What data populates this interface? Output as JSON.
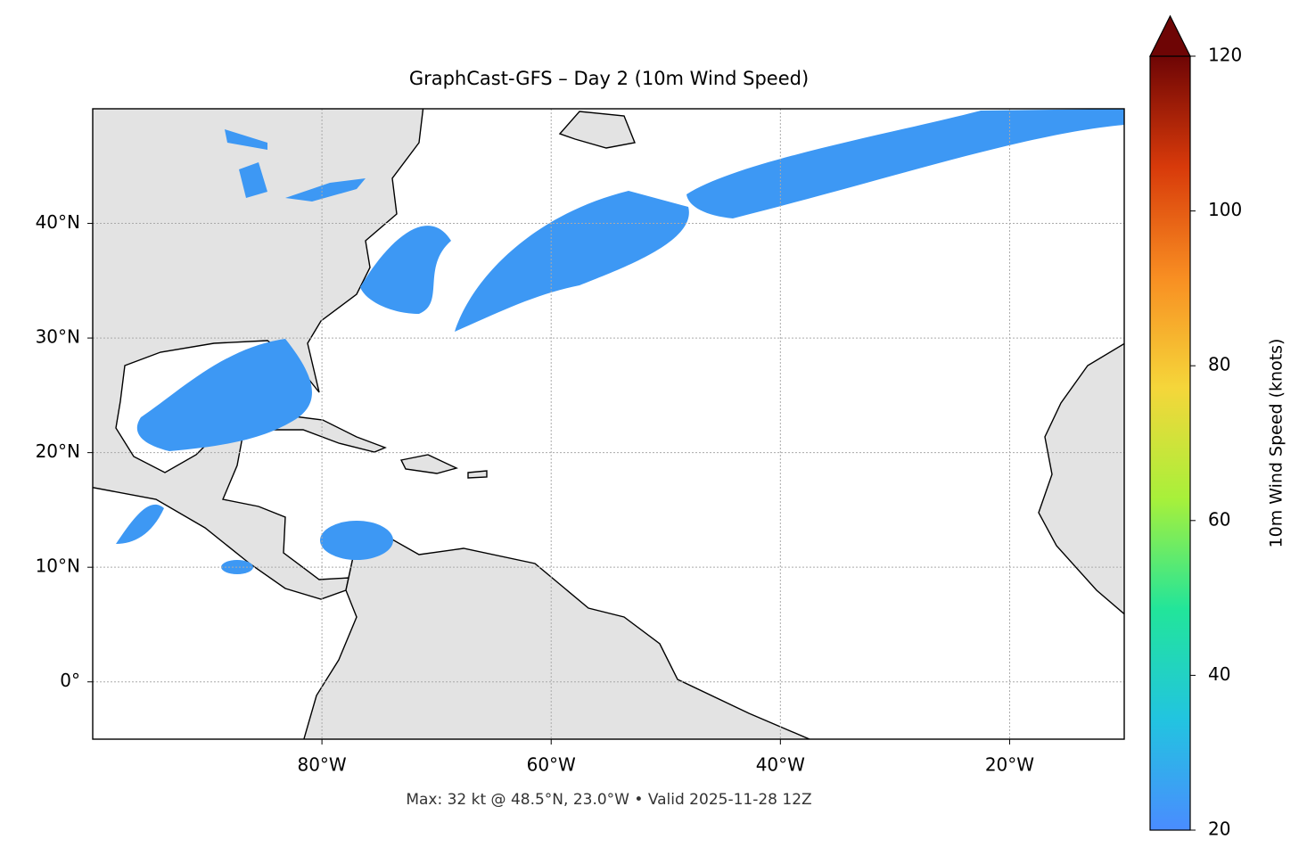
{
  "chart_data": {
    "type": "map",
    "title": "GraphCast-GFS – Day 2 (10m Wind Speed)",
    "annotation": "Max: 32 kt @ 48.5°N, 23.0°W • Valid 2025-11-28 12Z",
    "xlim": [
      -100,
      -10
    ],
    "ylim": [
      -5,
      50
    ],
    "xticks": [
      {
        "value": -80,
        "label": "80°W"
      },
      {
        "value": -60,
        "label": "60°W"
      },
      {
        "value": -40,
        "label": "40°W"
      },
      {
        "value": -20,
        "label": "20°W"
      }
    ],
    "yticks": [
      {
        "value": 0,
        "label": "0°"
      },
      {
        "value": 10,
        "label": "10°N"
      },
      {
        "value": 20,
        "label": "20°N"
      },
      {
        "value": 30,
        "label": "30°N"
      },
      {
        "value": 40,
        "label": "40°N"
      }
    ],
    "grid": true,
    "colorbar": {
      "label": "10m Wind Speed (knots)",
      "lim": [
        20,
        120
      ],
      "ticks": [
        20,
        40,
        60,
        80,
        100,
        120
      ],
      "extend": "max",
      "colors": [
        "#4a8cff",
        "#22c4e0",
        "#22e59a",
        "#a8f03a",
        "#f5d63a",
        "#f88e22",
        "#d83a0a",
        "#6e0505"
      ]
    }
  }
}
